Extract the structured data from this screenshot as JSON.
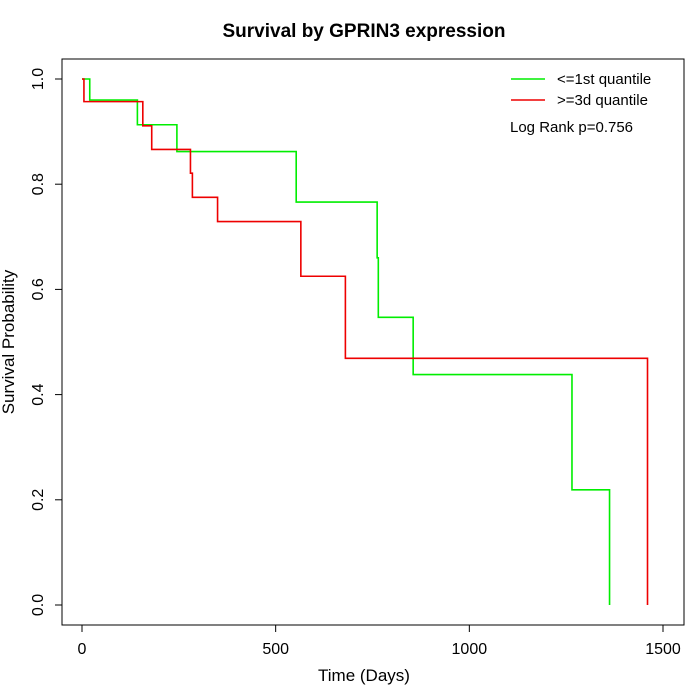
{
  "chart_data": {
    "type": "line",
    "title": "Survival by GPRIN3 expression",
    "xlabel": "Time (Days)",
    "ylabel": "Survival Probability",
    "xlim": [
      0,
      1500
    ],
    "ylim": [
      0,
      1.0
    ],
    "x_ticks": [
      0,
      500,
      1000,
      1500
    ],
    "x_tick_labels": [
      "0",
      "500",
      "1000",
      "1500"
    ],
    "y_ticks": [
      0.0,
      0.2,
      0.4,
      0.6,
      0.8,
      1.0
    ],
    "y_tick_labels": [
      "0.0",
      "0.2",
      "0.4",
      "0.6",
      "0.8",
      "1.0"
    ],
    "grid": false,
    "legend_position": "top-right",
    "annotation": "Log Rank p=0.756",
    "series": [
      {
        "name": "<=1st quantile",
        "color": "#00ee00",
        "steps": [
          [
            0,
            1.0
          ],
          [
            20,
            0.96
          ],
          [
            143,
            0.913
          ],
          [
            245,
            0.862
          ],
          [
            553,
            0.766
          ],
          [
            762,
            0.66
          ],
          [
            765,
            0.547
          ],
          [
            855,
            0.438
          ],
          [
            1265,
            0.219
          ],
          [
            1362,
            0.0
          ]
        ]
      },
      {
        "name": ">=3d quantile",
        "color": "#ee0000",
        "steps": [
          [
            0,
            1.0
          ],
          [
            5,
            0.957
          ],
          [
            157,
            0.911
          ],
          [
            180,
            0.866
          ],
          [
            280,
            0.821
          ],
          [
            285,
            0.775
          ],
          [
            350,
            0.729
          ],
          [
            565,
            0.625
          ],
          [
            680,
            0.469
          ],
          [
            1460,
            0.0
          ]
        ]
      }
    ]
  }
}
